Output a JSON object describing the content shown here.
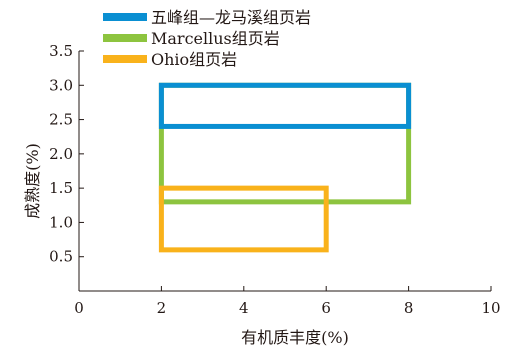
{
  "chart_data": {
    "type": "rectangle-range",
    "xlabel": "有机质丰度(%)",
    "ylabel": "成熟度(%)",
    "xlim": [
      0,
      10
    ],
    "ylim": [
      0,
      3.5
    ],
    "x_ticks": [
      "0",
      "2",
      "4",
      "6",
      "8",
      "10"
    ],
    "y_ticks": [
      "0.5",
      "1.0",
      "1.5",
      "2.0",
      "2.5",
      "3.0",
      "3.5"
    ],
    "grid": false,
    "legend_position": "top-left",
    "series": [
      {
        "name": "五峰组—龙马溪组页岩",
        "color": "#0a8fd2",
        "x_range": [
          2.0,
          8.0
        ],
        "y_range": [
          2.4,
          3.0
        ]
      },
      {
        "name": "Marcellus组页岩",
        "color": "#8dc43f",
        "x_range": [
          2.0,
          8.0
        ],
        "y_range": [
          1.3,
          3.0
        ]
      },
      {
        "name": "Ohio组页岩",
        "color": "#f9b21b",
        "x_range": [
          2.0,
          6.0
        ],
        "y_range": [
          0.6,
          1.5
        ]
      }
    ]
  }
}
